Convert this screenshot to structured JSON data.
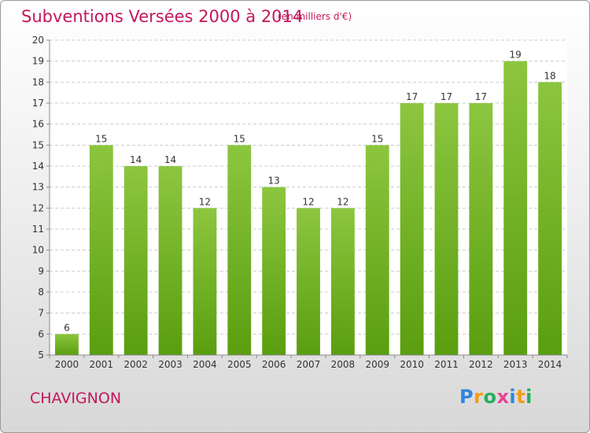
{
  "header": {
    "title": "Subventions Versées 2000 à 2014",
    "subtitle": "(en milliers d'€)"
  },
  "footer": {
    "commune": "CHAVIGNON",
    "logo": "Proxiti"
  },
  "colors": {
    "title": "#c2185b",
    "bar_top": "#8cc63f",
    "bar_bottom": "#5a9e0f",
    "grid": "#cccccc"
  },
  "chart_data": {
    "type": "bar",
    "title": "Subventions Versées 2000 à 2014",
    "subtitle": "(en milliers d'€)",
    "xlabel": "",
    "ylabel": "",
    "categories": [
      "2000",
      "2001",
      "2002",
      "2003",
      "2004",
      "2005",
      "2006",
      "2007",
      "2008",
      "2009",
      "2010",
      "2011",
      "2012",
      "2013",
      "2014"
    ],
    "values": [
      6,
      15,
      14,
      14,
      12,
      15,
      13,
      12,
      12,
      15,
      17,
      17,
      17,
      19,
      18
    ],
    "ylim": [
      5,
      20
    ],
    "yticks": [
      5,
      6,
      7,
      8,
      9,
      10,
      11,
      12,
      13,
      14,
      15,
      16,
      17,
      18,
      19,
      20
    ],
    "grid": true,
    "legend": "none"
  }
}
